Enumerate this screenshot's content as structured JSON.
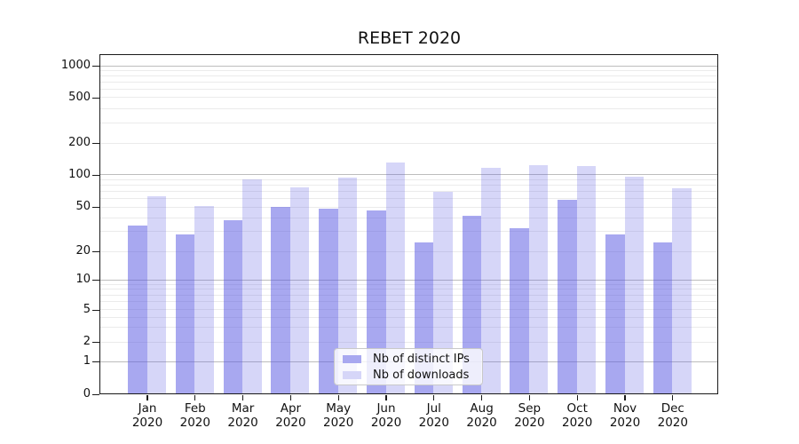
{
  "chart_data": {
    "type": "bar",
    "title": "REBET 2020",
    "categories": [
      "Jan",
      "Feb",
      "Mar",
      "Apr",
      "May",
      "Jun",
      "Jul",
      "Aug",
      "Sep",
      "Oct",
      "Nov",
      "Dec"
    ],
    "category_year": "2020",
    "series": [
      {
        "name": "Nb of distinct IPs",
        "key": "distinct-ips",
        "fill": "rgba(88,88,226,0.52)",
        "swatch": "#a8a8f0",
        "values": [
          34,
          28,
          38,
          50,
          48,
          46,
          24,
          41,
          32,
          58,
          28,
          24
        ]
      },
      {
        "name": "Nb of downloads",
        "key": "downloads",
        "fill": "rgba(88,88,226,0.245)",
        "swatch": "#d6d6f8",
        "values": [
          62,
          51,
          90,
          75,
          93,
          130,
          68,
          114,
          121,
          119,
          95,
          74
        ]
      }
    ],
    "y_axis": {
      "scale": "symlog",
      "tick_values": [
        0,
        1,
        2,
        5,
        10,
        20,
        50,
        100,
        200,
        500,
        1000
      ],
      "tick_labels": [
        "0",
        "1",
        "2",
        "5",
        "10",
        "20",
        "50",
        "100",
        "200",
        "500",
        "1000"
      ],
      "ylim_top_approx": 1250
    },
    "grid": {
      "major_values": [
        1,
        10,
        100,
        1000
      ],
      "minor_values": [
        2,
        3,
        4,
        5,
        6,
        7,
        8,
        9,
        20,
        30,
        40,
        50,
        60,
        70,
        80,
        90,
        200,
        300,
        400,
        500,
        600,
        700,
        800,
        900
      ]
    },
    "legend_position": "bottom-center",
    "colors": {
      "major_grid": "#bdbdbd",
      "minor_grid": "#ebebeb",
      "spine": "#1a1a1a",
      "text": "#111111",
      "background": "#ffffff"
    }
  }
}
